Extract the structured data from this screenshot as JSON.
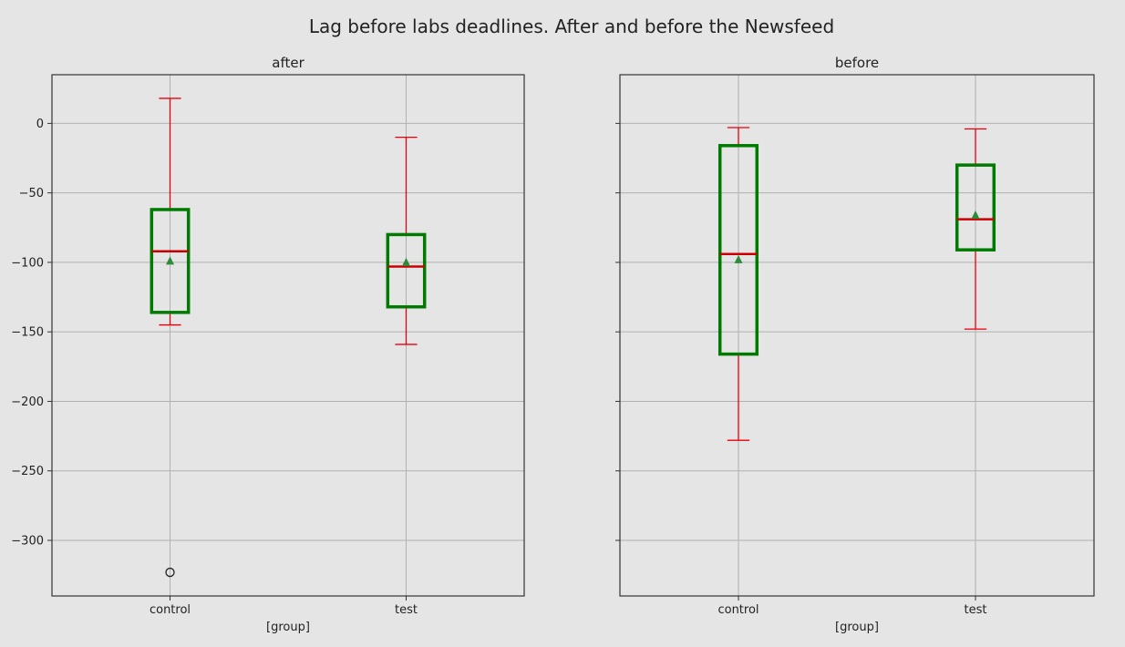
{
  "figure": {
    "suptitle": "Lag before labs deadlines. After and before the Newsfeed"
  },
  "chart_data": [
    {
      "type": "boxplot",
      "title": "after",
      "xlabel": "[group]",
      "ylabel": "",
      "ylim": [
        -340,
        35
      ],
      "yticks": [
        0,
        -50,
        -100,
        -150,
        -200,
        -250,
        -300
      ],
      "ytick_labels": [
        "0",
        "−50",
        "−100",
        "−150",
        "−200",
        "−250",
        "−300"
      ],
      "grid": true,
      "categories": [
        "control",
        "test"
      ],
      "boxes": [
        {
          "category": "control",
          "whisker_low": -145,
          "q1": -136,
          "median": -92,
          "q3": -62,
          "whisker_high": 18,
          "mean": -99,
          "outliers": [
            -323
          ]
        },
        {
          "category": "test",
          "whisker_low": -159,
          "q1": -132,
          "median": -103,
          "q3": -80,
          "whisker_high": -10,
          "mean": -100,
          "outliers": []
        }
      ]
    },
    {
      "type": "boxplot",
      "title": "before",
      "xlabel": "[group]",
      "ylabel": "",
      "ylim": [
        -340,
        35
      ],
      "yticks": [
        0,
        -50,
        -100,
        -150,
        -200,
        -250,
        -300
      ],
      "ytick_labels": [
        "",
        "",
        "",
        "",
        "",
        "",
        ""
      ],
      "grid": true,
      "categories": [
        "control",
        "test"
      ],
      "boxes": [
        {
          "category": "control",
          "whisker_low": -228,
          "q1": -166,
          "median": -94,
          "q3": -16,
          "whisker_high": -3,
          "mean": -98,
          "outliers": []
        },
        {
          "category": "test",
          "whisker_low": -148,
          "q1": -91,
          "median": -69,
          "q3": -30,
          "whisker_high": -4,
          "mean": -66,
          "outliers": []
        }
      ]
    }
  ],
  "colors": {
    "box": "#007a00",
    "whisker": "#e8000b",
    "median": "#cc0000",
    "mean_marker": "#2e8b3a",
    "grid": "#b0b0b0",
    "axes_bg": "#e5e5e5",
    "text": "#222222"
  }
}
